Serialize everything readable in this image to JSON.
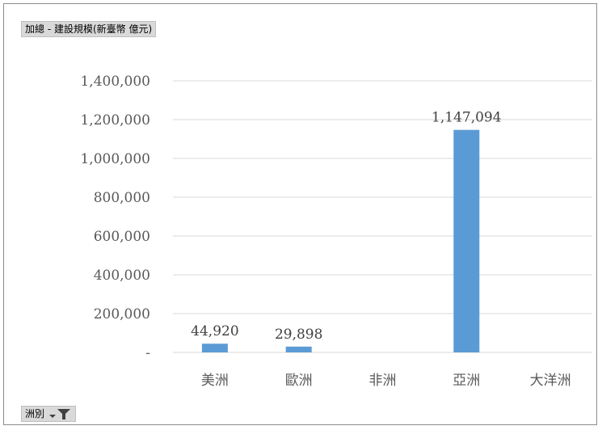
{
  "value_field_button": "加總 - 建設規模(新臺幣 億元)",
  "axis_field_button": "洲別",
  "filter_icon": "filter-dropdown-icon",
  "colors": {
    "bar": "#5b9bd5",
    "grid": "#d9d9d9"
  },
  "chart_data": {
    "type": "bar",
    "categories": [
      "美洲",
      "歐洲",
      "非洲",
      "亞洲",
      "大洋洲"
    ],
    "values": [
      44920,
      29898,
      0,
      1147094,
      0
    ],
    "data_labels": [
      "44,920",
      "29,898",
      "",
      "1,147,094",
      ""
    ],
    "ylim": [
      0,
      1400000
    ],
    "y_ticks": [
      0,
      200000,
      400000,
      600000,
      800000,
      1000000,
      1200000,
      1400000
    ],
    "y_tick_labels": [
      "-",
      "200,000",
      "400,000",
      "600,000",
      "800,000",
      "1,000,000",
      "1,200,000",
      "1,400,000"
    ],
    "grid": true,
    "legend": false
  }
}
